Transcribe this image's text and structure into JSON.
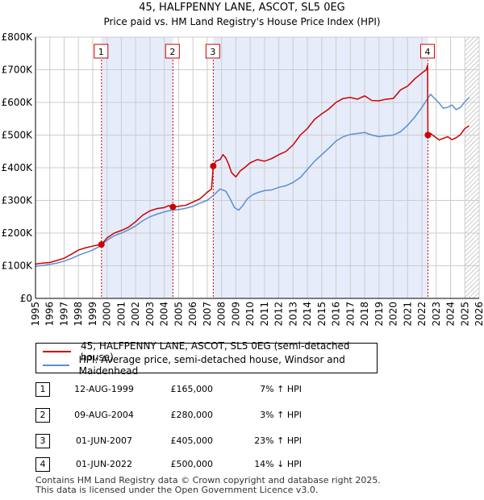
{
  "chart_data": {
    "type": "line",
    "title": "45, HALFPENNY LANE, ASCOT, SL5 0EG",
    "subtitle": "Price paid vs. HM Land Registry's House Price Index (HPI)",
    "xlim": [
      1995,
      2026
    ],
    "ylim": [
      0,
      800000
    ],
    "x_ticks": [
      "1995",
      "1996",
      "1997",
      "1998",
      "1999",
      "2000",
      "2001",
      "2002",
      "2003",
      "2004",
      "2005",
      "2006",
      "2007",
      "2008",
      "2009",
      "2010",
      "2011",
      "2012",
      "2013",
      "2014",
      "2015",
      "2016",
      "2017",
      "2018",
      "2019",
      "2020",
      "2021",
      "2022",
      "2023",
      "2024",
      "2025",
      "2026"
    ],
    "y_ticks": [
      {
        "value": 0,
        "label": "£0"
      },
      {
        "value": 100000,
        "label": "£100K"
      },
      {
        "value": 200000,
        "label": "£200K"
      },
      {
        "value": 300000,
        "label": "£300K"
      },
      {
        "value": 400000,
        "label": "£400K"
      },
      {
        "value": 500000,
        "label": "£500K"
      },
      {
        "value": 600000,
        "label": "£600K"
      },
      {
        "value": 700000,
        "label": "£700K"
      },
      {
        "value": 800000,
        "label": "£800K"
      }
    ],
    "colors": {
      "property": "#cc0000",
      "hpi": "#5b8fd0",
      "shade": "#e6ecfa",
      "grid": "#cccccc",
      "marker": "#cc0000"
    },
    "shaded_ranges": [
      [
        1999.61,
        2004.6
      ],
      [
        2007.42,
        2022.42
      ]
    ],
    "hatch_from": 2025.0,
    "series": [
      {
        "name": "45, HALFPENNY LANE, ASCOT, SL5 0EG (semi-detached house)",
        "x": [
          1995.0,
          1995.5,
          1996.0,
          1996.5,
          1997.0,
          1997.5,
          1998.0,
          1998.5,
          1999.0,
          1999.3,
          1999.61,
          2000.0,
          2000.5,
          2001.0,
          2001.5,
          2002.0,
          2002.5,
          2003.0,
          2003.5,
          2004.0,
          2004.3,
          2004.6,
          2005.0,
          2005.5,
          2006.0,
          2006.5,
          2007.0,
          2007.3,
          2007.42,
          2007.6,
          2007.9,
          2008.1,
          2008.3,
          2008.5,
          2008.7,
          2009.0,
          2009.3,
          2009.6,
          2010.0,
          2010.5,
          2011.0,
          2011.5,
          2012.0,
          2012.5,
          2013.0,
          2013.5,
          2014.0,
          2014.5,
          2015.0,
          2015.5,
          2016.0,
          2016.5,
          2017.0,
          2017.5,
          2018.0,
          2018.5,
          2019.0,
          2019.5,
          2020.0,
          2020.5,
          2021.0,
          2021.5,
          2022.0,
          2022.3,
          2022.4,
          2022.42,
          2022.6,
          2022.9,
          2023.2,
          2023.5,
          2023.8,
          2024.1,
          2024.4,
          2024.7,
          2025.0,
          2025.3
        ],
        "values": [
          105000,
          108000,
          110000,
          116000,
          123000,
          135000,
          148000,
          155000,
          160000,
          163000,
          165000,
          185000,
          200000,
          208000,
          218000,
          235000,
          255000,
          268000,
          275000,
          278000,
          284000,
          280000,
          282000,
          285000,
          295000,
          305000,
          325000,
          335000,
          405000,
          420000,
          425000,
          440000,
          430000,
          410000,
          385000,
          372000,
          390000,
          400000,
          415000,
          425000,
          420000,
          428000,
          440000,
          450000,
          470000,
          500000,
          520000,
          548000,
          565000,
          580000,
          600000,
          612000,
          615000,
          610000,
          620000,
          606000,
          605000,
          610000,
          612000,
          638000,
          650000,
          672000,
          690000,
          700000,
          715000,
          500000,
          505000,
          495000,
          485000,
          490000,
          495000,
          486000,
          492000,
          502000,
          520000,
          528000
        ]
      },
      {
        "name": "HPI: Average price, semi-detached house, Windsor and Maidenhead",
        "x": [
          1995.0,
          1995.5,
          1996.0,
          1996.5,
          1997.0,
          1997.5,
          1998.0,
          1998.5,
          1999.0,
          1999.5,
          2000.0,
          2000.5,
          2001.0,
          2001.5,
          2002.0,
          2002.5,
          2003.0,
          2003.5,
          2004.0,
          2004.5,
          2005.0,
          2005.5,
          2006.0,
          2006.5,
          2007.0,
          2007.5,
          2007.9,
          2008.3,
          2008.6,
          2008.9,
          2009.2,
          2009.5,
          2009.8,
          2010.2,
          2010.6,
          2011.0,
          2011.5,
          2012.0,
          2012.5,
          2013.0,
          2013.5,
          2014.0,
          2014.5,
          2015.0,
          2015.5,
          2016.0,
          2016.5,
          2017.0,
          2017.5,
          2018.0,
          2018.5,
          2019.0,
          2019.5,
          2020.0,
          2020.5,
          2021.0,
          2021.5,
          2022.0,
          2022.3,
          2022.6,
          2022.9,
          2023.2,
          2023.5,
          2023.8,
          2024.1,
          2024.4,
          2024.7,
          2025.0,
          2025.3
        ],
        "values": [
          98000,
          101000,
          104000,
          108000,
          114000,
          122000,
          132000,
          140000,
          148000,
          160000,
          178000,
          192000,
          200000,
          210000,
          222000,
          238000,
          250000,
          258000,
          265000,
          270000,
          272000,
          276000,
          282000,
          292000,
          300000,
          318000,
          335000,
          328000,
          305000,
          278000,
          270000,
          285000,
          305000,
          318000,
          325000,
          330000,
          332000,
          340000,
          345000,
          355000,
          370000,
          395000,
          420000,
          440000,
          460000,
          482000,
          495000,
          502000,
          505000,
          508000,
          500000,
          495000,
          498000,
          500000,
          510000,
          530000,
          555000,
          585000,
          605000,
          625000,
          612000,
          598000,
          582000,
          585000,
          592000,
          578000,
          585000,
          602000,
          615000
        ]
      }
    ],
    "sales": [
      {
        "id": "1",
        "x": 1999.61,
        "value": 165000
      },
      {
        "id": "2",
        "x": 2004.6,
        "value": 280000
      },
      {
        "id": "3",
        "x": 2007.42,
        "value": 405000
      },
      {
        "id": "4",
        "x": 2022.42,
        "value": 500000
      }
    ]
  },
  "legend": {
    "property_label": "45, HALFPENNY LANE, ASCOT, SL5 0EG (semi-detached house)",
    "hpi_label": "HPI: Average price, semi-detached house, Windsor and Maidenhead"
  },
  "sales_table": [
    {
      "num": "1",
      "date": "12-AUG-1999",
      "price": "£165,000",
      "hpi": "7% ↑ HPI"
    },
    {
      "num": "2",
      "date": "09-AUG-2004",
      "price": "£280,000",
      "hpi": "3% ↑ HPI"
    },
    {
      "num": "3",
      "date": "01-JUN-2007",
      "price": "£405,000",
      "hpi": "23% ↑ HPI"
    },
    {
      "num": "4",
      "date": "01-JUN-2022",
      "price": "£500,000",
      "hpi": "14% ↓ HPI"
    }
  ],
  "footer": {
    "line1": "Contains HM Land Registry data © Crown copyright and database right 2025.",
    "line2": "This data is licensed under the Open Government Licence v3.0."
  }
}
